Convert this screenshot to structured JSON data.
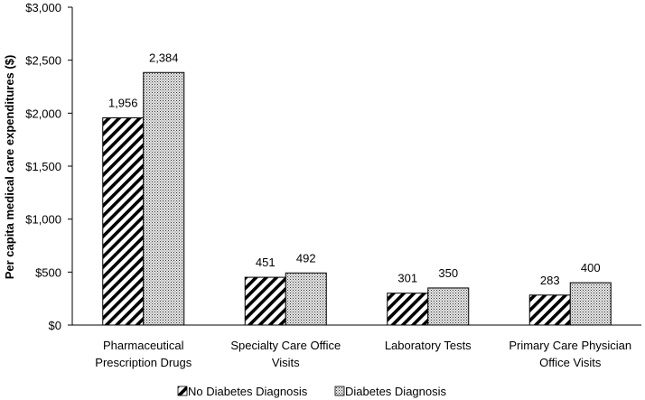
{
  "chart_data": {
    "type": "bar",
    "ylabel": "Per capita medical care expenditures ($)",
    "xlabel": "",
    "ylim": [
      0,
      3000
    ],
    "y_ticks": [
      {
        "value": 0,
        "label": "$0"
      },
      {
        "value": 500,
        "label": "$500"
      },
      {
        "value": 1000,
        "label": "$1,000"
      },
      {
        "value": 1500,
        "label": "$1,500"
      },
      {
        "value": 2000,
        "label": "$2,000"
      },
      {
        "value": 2500,
        "label": "$2,500"
      },
      {
        "value": 3000,
        "label": "$3,000"
      }
    ],
    "categories": [
      [
        "Pharmaceutical",
        "Prescription Drugs"
      ],
      [
        "Specialty Care Office",
        "Visits"
      ],
      [
        "Laboratory Tests"
      ],
      [
        "Primary Care Physician",
        "Office Visits"
      ]
    ],
    "series": [
      {
        "name": "No Diabetes Diagnosis",
        "values": [
          1956,
          451,
          301,
          283
        ],
        "labels": [
          "1,956",
          "451",
          "301",
          "283"
        ],
        "pattern": "diagonal-hatch"
      },
      {
        "name": "Diabetes Diagnosis",
        "values": [
          2384,
          492,
          350,
          400
        ],
        "labels": [
          "2,384",
          "492",
          "350",
          "400"
        ],
        "pattern": "crosshatch"
      }
    ],
    "grid": false,
    "legend": "bottom"
  }
}
